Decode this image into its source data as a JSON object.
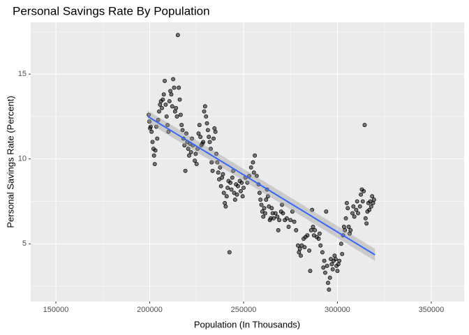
{
  "chart_data": {
    "type": "scatter",
    "title": "Personal Savings Rate By Population",
    "x_label": "Population (In Thousands)",
    "y_label": "Personal Savings Rate (Percent)",
    "xlim": [
      136600,
      367500
    ],
    "ylim": [
      1.6,
      18.05
    ],
    "xticks": [
      150000,
      200000,
      250000,
      300000,
      350000
    ],
    "yticks": [
      5,
      10,
      15
    ],
    "x_minor_ticks": [
      175000,
      225000,
      275000,
      325000
    ],
    "y_minor_ticks": [
      2.5,
      7.5,
      12.5,
      17.5
    ],
    "grid": true,
    "point_color": "#000000",
    "panel_color": "#ebebeb",
    "points": {
      "x": [
        199500,
        199800,
        200200,
        200500,
        201000,
        201500,
        202000,
        202300,
        202700,
        203000,
        203500,
        204000,
        204500,
        205000,
        205500,
        206000,
        206500,
        207000,
        207500,
        208000,
        208500,
        209000,
        209500,
        210000,
        210500,
        211000,
        211500,
        212000,
        212500,
        213000,
        213500,
        214000,
        214500,
        215000,
        215500,
        216000,
        216500,
        217000,
        217500,
        218000,
        218500,
        219000,
        219500,
        220000,
        220500,
        221000,
        221500,
        222000,
        222500,
        223000,
        224000,
        224500,
        225000,
        225500,
        226000,
        226500,
        227000,
        227500,
        228000,
        228500,
        229000,
        229500,
        230000,
        230500,
        231000,
        231500,
        232000,
        232500,
        233000,
        233500,
        234000,
        234500,
        235000,
        235500,
        236000,
        236500,
        237000,
        237500,
        238000,
        238500,
        239000,
        239500,
        240000,
        240500,
        241000,
        241500,
        242000,
        242500,
        243000,
        243500,
        244000,
        244500,
        245000,
        245500,
        246000,
        246500,
        247000,
        248000,
        248500,
        249000,
        249500,
        250000,
        251000,
        252000,
        253000,
        254000,
        255000,
        255500,
        256000,
        257000,
        258000,
        258500,
        259000,
        259500,
        260000,
        260500,
        261000,
        261500,
        262000,
        262500,
        263000,
        263500,
        264000,
        264500,
        265000,
        265500,
        266000,
        267000,
        268000,
        268500,
        269000,
        270000,
        270500,
        271000,
        272000,
        273000,
        274000,
        275000,
        276000,
        277000,
        278000,
        279000,
        279500,
        280000,
        280500,
        281000,
        282000,
        282500,
        283000,
        284000,
        285000,
        285500,
        286000,
        286500,
        287000,
        287500,
        288000,
        289000,
        290000,
        290500,
        291000,
        292000,
        292500,
        293000,
        293500,
        294000,
        294500,
        295000,
        295500,
        296000,
        296500,
        297000,
        297500,
        298000,
        298500,
        299000,
        299500,
        300000,
        300500,
        301000,
        302000,
        302500,
        303000,
        303500,
        304000,
        304500,
        305000,
        305500,
        306000,
        306500,
        307000,
        308000,
        308500,
        309000,
        310000,
        310500,
        311000,
        312000,
        312500,
        313000,
        313500,
        314000,
        314500,
        315000,
        315500,
        316000,
        316500,
        317000,
        317500,
        318000,
        318500,
        319000,
        319500
      ],
      "y": [
        12.6,
        12.2,
        11.8,
        11.9,
        11.6,
        11.0,
        10.6,
        10.2,
        9.7,
        10.5,
        11.9,
        11.2,
        12.3,
        12.8,
        13.2,
        13.4,
        13.0,
        13.5,
        13.8,
        14.6,
        13.2,
        12.5,
        12.0,
        11.6,
        13.4,
        14.0,
        13.8,
        13.1,
        14.7,
        14.2,
        12.8,
        13.0,
        12.5,
        17.3,
        14.2,
        13.5,
        12.6,
        12.0,
        11.7,
        11.2,
        10.8,
        9.3,
        11.5,
        11.0,
        10.6,
        10.2,
        10.9,
        10.4,
        11.2,
        10.8,
        9.9,
        10.3,
        9.7,
        10.6,
        11.5,
        12.0,
        11.3,
        10.8,
        10.9,
        11.0,
        12.8,
        13.1,
        12.5,
        12.1,
        11.7,
        11.3,
        11.0,
        10.6,
        9.8,
        9.3,
        11.2,
        11.8,
        11.6,
        10.3,
        9.8,
        9.2,
        8.8,
        9.5,
        8.4,
        8.9,
        9.1,
        8.0,
        7.4,
        7.2,
        7.8,
        8.3,
        8.7,
        4.5,
        8.6,
        8.2,
        8.9,
        9.3,
        8.0,
        7.6,
        8.5,
        7.9,
        8.4,
        8.7,
        8.1,
        8.6,
        7.8,
        8.3,
        8.9,
        8.6,
        9.0,
        9.5,
        9.8,
        9.2,
        10.2,
        9.0,
        8.5,
        8.0,
        7.6,
        7.3,
        6.9,
        6.6,
        7.1,
        6.8,
        7.6,
        8.2,
        7.8,
        7.2,
        6.4,
        6.5,
        7.1,
        6.8,
        6.5,
        6.8,
        6.6,
        5.8,
        6.4,
        6.9,
        7.3,
        6.8,
        6.4,
        6.5,
        6.0,
        6.4,
        6.9,
        6.3,
        5.8,
        4.9,
        4.5,
        4.7,
        4.3,
        4.9,
        5.3,
        4.8,
        5.4,
        5.5,
        4.6,
        3.4,
        5.8,
        7.0,
        6.0,
        5.5,
        5.8,
        5.4,
        5.3,
        5.6,
        4.9,
        4.5,
        3.6,
        4.0,
        3.3,
        6.9,
        3.7,
        2.7,
        2.3,
        3.0,
        4.1,
        3.8,
        3.5,
        4.0,
        4.3,
        4.1,
        3.7,
        3.4,
        3.8,
        4.0,
        5.0,
        4.4,
        5.5,
        6.0,
        5.8,
        6.5,
        7.4,
        7.1,
        6.0,
        5.6,
        5.8,
        6.8,
        7.2,
        6.6,
        7.0,
        7.5,
        6.8,
        7.2,
        7.9,
        8.2,
        7.5,
        8.1,
        12.0,
        6.5,
        6.2,
        6.9,
        7.4,
        7.0,
        7.5,
        7.2,
        7.8,
        7.4,
        7.6
      ]
    },
    "fit": {
      "x": [
        199000,
        320000
      ],
      "y": [
        12.5,
        4.35
      ],
      "lower": [
        12.15,
        4.0
      ],
      "upper": [
        12.85,
        4.7
      ],
      "color": "#3366ff",
      "band_color": "#999999"
    }
  }
}
